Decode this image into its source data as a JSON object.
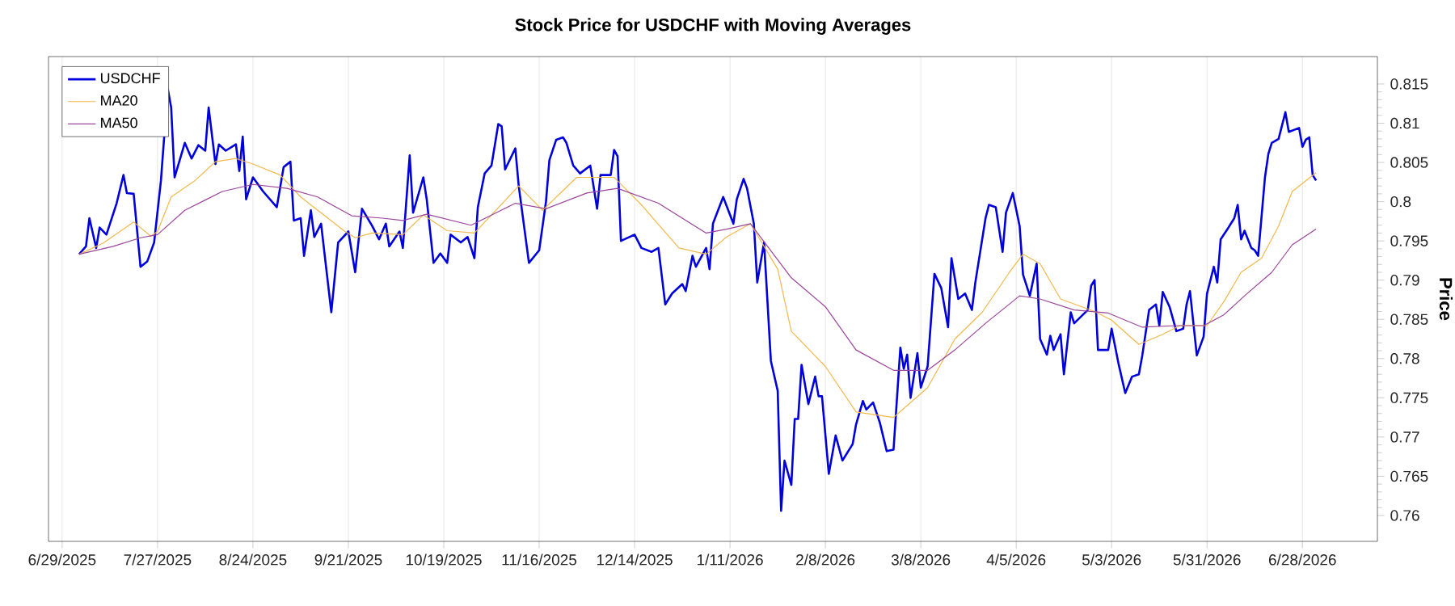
{
  "chart_data": {
    "type": "line",
    "title": "Stock Price for USDCHF with Moving Averages",
    "ylabel": "Price",
    "xlim": [
      "2025-06-25",
      "2026-07-20"
    ],
    "ylim": [
      0.7567,
      0.8185
    ],
    "xticks": [
      {
        "value": "2025-06-29",
        "label": "6/29/2025"
      },
      {
        "value": "2025-07-27",
        "label": "7/27/2025"
      },
      {
        "value": "2025-08-24",
        "label": "8/24/2025"
      },
      {
        "value": "2025-09-21",
        "label": "9/21/2025"
      },
      {
        "value": "2025-10-19",
        "label": "10/19/2025"
      },
      {
        "value": "2025-11-16",
        "label": "11/16/2025"
      },
      {
        "value": "2025-12-14",
        "label": "12/14/2025"
      },
      {
        "value": "2026-01-11",
        "label": "1/11/2026"
      },
      {
        "value": "2026-02-08",
        "label": "2/8/2026"
      },
      {
        "value": "2026-03-08",
        "label": "3/8/2026"
      },
      {
        "value": "2026-04-05",
        "label": "4/5/2026"
      },
      {
        "value": "2026-05-03",
        "label": "5/3/2026"
      },
      {
        "value": "2026-05-31",
        "label": "5/31/2026"
      },
      {
        "value": "2026-06-28",
        "label": "6/28/2026"
      }
    ],
    "yticks": [
      0.76,
      0.765,
      0.77,
      0.775,
      0.78,
      0.785,
      0.79,
      0.795,
      0.8,
      0.805,
      0.81,
      0.815
    ],
    "grid": "x",
    "legend": "top left",
    "line_style": "solid",
    "series": [
      {
        "name": "USDCHF",
        "color": "#0000dd",
        "x": [
          "2025-07-04",
          "2025-07-06",
          "2025-07-07",
          "2025-07-09",
          "2025-07-10",
          "2025-07-12",
          "2025-07-15",
          "2025-07-17",
          "2025-07-18",
          "2025-07-20",
          "2025-07-22",
          "2025-07-24",
          "2025-07-26",
          "2025-07-28",
          "2025-07-30",
          "2025-07-31",
          "2025-08-01",
          "2025-08-04",
          "2025-08-06",
          "2025-08-08",
          "2025-08-10",
          "2025-08-11",
          "2025-08-13",
          "2025-08-14",
          "2025-08-16",
          "2025-08-19",
          "2025-08-20",
          "2025-08-21",
          "2025-08-22",
          "2025-08-24",
          "2025-08-27",
          "2025-08-31",
          "2025-09-02",
          "2025-09-04",
          "2025-09-05",
          "2025-09-07",
          "2025-09-08",
          "2025-09-10",
          "2025-09-11",
          "2025-09-13",
          "2025-09-14",
          "2025-09-16",
          "2025-09-18",
          "2025-09-21",
          "2025-09-23",
          "2025-09-25",
          "2025-09-28",
          "2025-09-30",
          "2025-10-02",
          "2025-10-03",
          "2025-10-06",
          "2025-10-07",
          "2025-10-09",
          "2025-10-10",
          "2025-10-13",
          "2025-10-14",
          "2025-10-16",
          "2025-10-18",
          "2025-10-20",
          "2025-10-21",
          "2025-10-24",
          "2025-10-26",
          "2025-10-28",
          "2025-10-29",
          "2025-10-31",
          "2025-11-02",
          "2025-11-04",
          "2025-11-05",
          "2025-11-06",
          "2025-11-09",
          "2025-11-10",
          "2025-11-13",
          "2025-11-16",
          "2025-11-18",
          "2025-11-19",
          "2025-11-21",
          "2025-11-23",
          "2025-11-24",
          "2025-11-26",
          "2025-11-28",
          "2025-12-01",
          "2025-12-03",
          "2025-12-04",
          "2025-12-07",
          "2025-12-08",
          "2025-12-09",
          "2025-12-10",
          "2025-12-14",
          "2025-12-16",
          "2025-12-19",
          "2025-12-21",
          "2025-12-23",
          "2025-12-25",
          "2025-12-28",
          "2025-12-29",
          "2025-12-31",
          "2026-01-01",
          "2026-01-04",
          "2026-01-05",
          "2026-01-06",
          "2026-01-09",
          "2026-01-12",
          "2026-01-13",
          "2026-01-15",
          "2026-01-16",
          "2026-01-18",
          "2026-01-19",
          "2026-01-21",
          "2026-01-23",
          "2026-01-25",
          "2026-01-26",
          "2026-01-27",
          "2026-01-29",
          "2026-01-30",
          "2026-01-31",
          "2026-02-01",
          "2026-02-03",
          "2026-02-05",
          "2026-02-06",
          "2026-02-07",
          "2026-02-09",
          "2026-02-11",
          "2026-02-13",
          "2026-02-16",
          "2026-02-17",
          "2026-02-19",
          "2026-02-20",
          "2026-02-22",
          "2026-02-24",
          "2026-02-26",
          "2026-02-28",
          "2026-03-02",
          "2026-03-03",
          "2026-03-04",
          "2026-03-05",
          "2026-03-07",
          "2026-03-08",
          "2026-03-10",
          "2026-03-12",
          "2026-03-14",
          "2026-03-16",
          "2026-03-17",
          "2026-03-19",
          "2026-03-21",
          "2026-03-23",
          "2026-03-24",
          "2026-03-27",
          "2026-03-28",
          "2026-03-30",
          "2026-04-01",
          "2026-04-02",
          "2026-04-04",
          "2026-04-06",
          "2026-04-07",
          "2026-04-09",
          "2026-04-11",
          "2026-04-12",
          "2026-04-14",
          "2026-04-15",
          "2026-04-16",
          "2026-04-18",
          "2026-04-19",
          "2026-04-21",
          "2026-04-22",
          "2026-04-26",
          "2026-04-27",
          "2026-04-28",
          "2026-04-29",
          "2026-05-02",
          "2026-05-03",
          "2026-05-05",
          "2026-05-07",
          "2026-05-09",
          "2026-05-11",
          "2026-05-12",
          "2026-05-14",
          "2026-05-16",
          "2026-05-17",
          "2026-05-18",
          "2026-05-20",
          "2026-05-22",
          "2026-05-24",
          "2026-05-25",
          "2026-05-26",
          "2026-05-28",
          "2026-05-30",
          "2026-05-31",
          "2026-06-02",
          "2026-06-03",
          "2026-06-04",
          "2026-06-06",
          "2026-06-08",
          "2026-06-09",
          "2026-06-10",
          "2026-06-11",
          "2026-06-13",
          "2026-06-14",
          "2026-06-15",
          "2026-06-17",
          "2026-06-18",
          "2026-06-19",
          "2026-06-21",
          "2026-06-23",
          "2026-06-24",
          "2026-06-27",
          "2026-06-28",
          "2026-06-29",
          "2026-06-30",
          "2026-07-01",
          "2026-07-02"
        ],
        "values": [
          0.7933,
          0.7943,
          0.7979,
          0.7941,
          0.7967,
          0.7958,
          0.7998,
          0.8034,
          0.8011,
          0.801,
          0.7917,
          0.7924,
          0.7948,
          0.8027,
          0.8144,
          0.812,
          0.8031,
          0.8075,
          0.8055,
          0.8072,
          0.8065,
          0.812,
          0.8048,
          0.8073,
          0.8065,
          0.8073,
          0.8039,
          0.8083,
          0.8003,
          0.8031,
          0.8013,
          0.7993,
          0.8044,
          0.8051,
          0.7976,
          0.7979,
          0.7931,
          0.7989,
          0.7955,
          0.7972,
          0.7934,
          0.7859,
          0.7948,
          0.7962,
          0.791,
          0.7991,
          0.7969,
          0.7952,
          0.7972,
          0.7943,
          0.7962,
          0.7941,
          0.8059,
          0.7986,
          0.8031,
          0.8003,
          0.7922,
          0.7934,
          0.7922,
          0.7958,
          0.7948,
          0.7955,
          0.7928,
          0.7993,
          0.8036,
          0.8046,
          0.8099,
          0.8096,
          0.8041,
          0.8068,
          0.802,
          0.7922,
          0.7938,
          0.8,
          0.8053,
          0.8079,
          0.8082,
          0.8075,
          0.8046,
          0.8036,
          0.8046,
          0.7991,
          0.8034,
          0.8034,
          0.8066,
          0.8058,
          0.795,
          0.7958,
          0.7941,
          0.7936,
          0.7941,
          0.7869,
          0.7883,
          0.7895,
          0.7886,
          0.7931,
          0.7917,
          0.7941,
          0.7914,
          0.7972,
          0.8006,
          0.7972,
          0.8003,
          0.8029,
          0.8017,
          0.7972,
          0.7897,
          0.7948,
          0.7797,
          0.7759,
          0.7606,
          0.767,
          0.7639,
          0.7723,
          0.7723,
          0.7792,
          0.7742,
          0.7777,
          0.7752,
          0.7752,
          0.7653,
          0.7702,
          0.767,
          0.7691,
          0.7716,
          0.7746,
          0.7735,
          0.7744,
          0.7718,
          0.7682,
          0.7684,
          0.7814,
          0.7787,
          0.7805,
          0.775,
          0.7807,
          0.7763,
          0.779,
          0.7908,
          0.789,
          0.784,
          0.7928,
          0.7876,
          0.7883,
          0.7862,
          0.7897,
          0.7979,
          0.7996,
          0.7993,
          0.7936,
          0.7986,
          0.8011,
          0.7969,
          0.7907,
          0.788,
          0.7921,
          0.7825,
          0.7805,
          0.7829,
          0.7811,
          0.7831,
          0.778,
          0.7859,
          0.7845,
          0.7862,
          0.7893,
          0.79,
          0.7811,
          0.7811,
          0.7838,
          0.7794,
          0.7756,
          0.7777,
          0.778,
          0.7804,
          0.7862,
          0.7869,
          0.7842,
          0.7885,
          0.7866,
          0.7835,
          0.7838,
          0.7869,
          0.7886,
          0.7804,
          0.7828,
          0.7883,
          0.7917,
          0.7897,
          0.7952,
          0.7965,
          0.7979,
          0.7996,
          0.7952,
          0.7963,
          0.7941,
          0.7938,
          0.7931,
          0.8031,
          0.8061,
          0.8075,
          0.808,
          0.8114,
          0.8089,
          0.8094,
          0.807,
          0.8079,
          0.8082,
          0.8034,
          0.8027
        ]
      },
      {
        "name": "MA20",
        "color": "#f2b84b",
        "x": [
          "2025-07-04",
          "2025-07-11",
          "2025-07-20",
          "2025-07-25",
          "2025-07-27",
          "2025-07-31",
          "2025-08-07",
          "2025-08-13",
          "2025-08-19",
          "2025-08-24",
          "2025-09-01",
          "2025-09-07",
          "2025-09-15",
          "2025-09-20",
          "2025-09-23",
          "2025-09-28",
          "2025-10-07",
          "2025-10-13",
          "2025-10-20",
          "2025-10-28",
          "2025-11-10",
          "2025-11-17",
          "2025-11-27",
          "2025-12-08",
          "2025-12-16",
          "2025-12-27",
          "2026-01-04",
          "2026-01-10",
          "2026-01-17",
          "2026-01-25",
          "2026-01-29",
          "2026-02-08",
          "2026-02-17",
          "2026-02-28",
          "2026-03-10",
          "2026-03-18",
          "2026-03-26",
          "2026-04-03",
          "2026-04-07",
          "2026-04-12",
          "2026-04-18",
          "2026-04-28",
          "2026-05-03",
          "2026-05-11",
          "2026-05-18",
          "2026-05-23",
          "2026-05-31",
          "2026-06-05",
          "2026-06-10",
          "2026-06-16",
          "2026-06-21",
          "2026-06-25",
          "2026-07-02"
        ],
        "values": [
          0.7933,
          0.7947,
          0.7974,
          0.7956,
          0.7962,
          0.8006,
          0.8027,
          0.8051,
          0.8055,
          0.8048,
          0.8034,
          0.8006,
          0.7979,
          0.7962,
          0.7954,
          0.796,
          0.7958,
          0.7983,
          0.7963,
          0.796,
          0.802,
          0.7989,
          0.8031,
          0.8031,
          0.7996,
          0.7941,
          0.7933,
          0.7955,
          0.7972,
          0.7914,
          0.7835,
          0.779,
          0.7732,
          0.7725,
          0.7763,
          0.7825,
          0.7859,
          0.791,
          0.7933,
          0.7921,
          0.7876,
          0.786,
          0.7849,
          0.7818,
          0.7831,
          0.7842,
          0.7842,
          0.7873,
          0.791,
          0.7928,
          0.7969,
          0.8013,
          0.8037
        ]
      },
      {
        "name": "MA50",
        "color": "#9b449b",
        "x": [
          "2025-07-04",
          "2025-07-14",
          "2025-07-22",
          "2025-07-27",
          "2025-08-04",
          "2025-08-15",
          "2025-08-24",
          "2025-09-03",
          "2025-09-12",
          "2025-09-22",
          "2025-10-01",
          "2025-10-07",
          "2025-10-14",
          "2025-10-27",
          "2025-11-09",
          "2025-11-18",
          "2025-11-30",
          "2025-12-09",
          "2025-12-21",
          "2026-01-04",
          "2026-01-10",
          "2026-01-17",
          "2026-01-29",
          "2026-02-08",
          "2026-02-17",
          "2026-02-28",
          "2026-03-10",
          "2026-03-18",
          "2026-03-27",
          "2026-04-06",
          "2026-04-12",
          "2026-04-22",
          "2026-05-02",
          "2026-05-12",
          "2026-05-22",
          "2026-05-30",
          "2026-06-05",
          "2026-06-11",
          "2026-06-19",
          "2026-06-25",
          "2026-07-02"
        ],
        "values": [
          0.7933,
          0.7943,
          0.7954,
          0.7958,
          0.7989,
          0.8013,
          0.8022,
          0.8017,
          0.8006,
          0.7982,
          0.7979,
          0.7976,
          0.7984,
          0.797,
          0.7998,
          0.7991,
          0.8011,
          0.8017,
          0.7998,
          0.796,
          0.7965,
          0.7972,
          0.7903,
          0.7866,
          0.7811,
          0.7785,
          0.7785,
          0.7811,
          0.7845,
          0.788,
          0.7876,
          0.7862,
          0.7858,
          0.784,
          0.7842,
          0.7842,
          0.7856,
          0.788,
          0.791,
          0.7945,
          0.7965
        ]
      }
    ]
  }
}
